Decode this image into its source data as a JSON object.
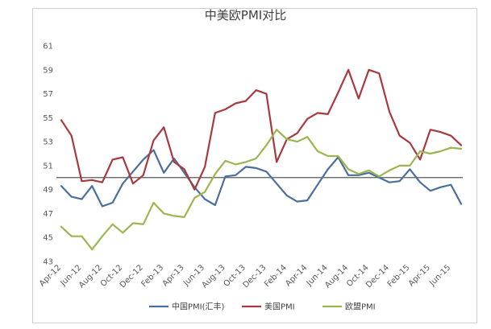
{
  "chart_data": {
    "type": "line",
    "title": "中美欧PMI对比",
    "xlabel": "",
    "ylabel": "",
    "ylim": [
      43,
      61
    ],
    "yticks": [
      43,
      45,
      47,
      49,
      51,
      53,
      55,
      57,
      59,
      61
    ],
    "reference_line": 50,
    "grid": false,
    "legend_position": "bottom",
    "x": [
      "Apr-12",
      "May-12",
      "Jun-12",
      "Jul-12",
      "Aug-12",
      "Sep-12",
      "Oct-12",
      "Nov-12",
      "Dec-12",
      "Jan-13",
      "Feb-13",
      "Mar-13",
      "Apr-13",
      "May-13",
      "Jun-13",
      "Jul-13",
      "Aug-13",
      "Sep-13",
      "Oct-13",
      "Nov-13",
      "Dec-13",
      "Jan-14",
      "Feb-14",
      "Mar-14",
      "Apr-14",
      "May-14",
      "Jun-14",
      "Jul-14",
      "Aug-14",
      "Sep-14",
      "Oct-14",
      "Nov-14",
      "Dec-14",
      "Jan-15",
      "Feb-15",
      "Mar-15",
      "Apr-15",
      "May-15",
      "Jun-15",
      "Jul-15"
    ],
    "xtick_labels": [
      "Apr-12",
      "Jun-12",
      "Aug-12",
      "Oct-12",
      "Dec-12",
      "Feb-13",
      "Apr-13",
      "Jun-13",
      "Aug-13",
      "Oct-13",
      "Dec-13",
      "Feb-14",
      "Apr-14",
      "Jun-14",
      "Aug-14",
      "Oct-14",
      "Dec-14",
      "Feb-15",
      "Apr-15",
      "Jun-15"
    ],
    "series": [
      {
        "name": "中国PMI(汇丰)",
        "color": "#4a6f9c",
        "values": [
          49.3,
          48.4,
          48.2,
          49.3,
          47.6,
          47.9,
          49.5,
          50.5,
          51.5,
          52.3,
          50.4,
          51.6,
          50.4,
          49.2,
          48.2,
          47.7,
          50.1,
          50.2,
          50.9,
          50.8,
          50.5,
          49.5,
          48.5,
          48.0,
          48.1,
          49.4,
          50.7,
          51.7,
          50.2,
          50.2,
          50.4,
          50.0,
          49.6,
          49.7,
          50.7,
          49.6,
          48.9,
          49.2,
          49.4,
          47.8
        ]
      },
      {
        "name": "美国PMI",
        "color": "#a83a3f",
        "values": [
          54.8,
          53.5,
          49.7,
          49.8,
          49.6,
          51.5,
          51.7,
          49.5,
          50.2,
          53.1,
          54.2,
          51.3,
          50.7,
          49.0,
          50.9,
          55.4,
          55.7,
          56.2,
          56.4,
          57.3,
          57.0,
          51.3,
          53.2,
          53.7,
          54.9,
          55.4,
          55.3,
          57.1,
          59.0,
          56.6,
          59.0,
          58.7,
          55.5,
          53.5,
          52.9,
          51.5,
          54.0,
          53.8,
          53.5,
          52.7
        ]
      },
      {
        "name": "欧盟PMI",
        "color": "#9bb650",
        "values": [
          45.9,
          45.1,
          45.1,
          44.0,
          45.1,
          46.1,
          45.4,
          46.2,
          46.1,
          47.9,
          47.0,
          46.8,
          46.7,
          48.3,
          48.8,
          50.3,
          51.4,
          51.1,
          51.3,
          51.6,
          52.7,
          54.0,
          53.2,
          53.0,
          53.4,
          52.2,
          51.8,
          51.8,
          50.7,
          50.3,
          50.6,
          50.1,
          50.6,
          51.0,
          51.0,
          52.2,
          52.0,
          52.2,
          52.5,
          52.4
        ]
      }
    ]
  }
}
